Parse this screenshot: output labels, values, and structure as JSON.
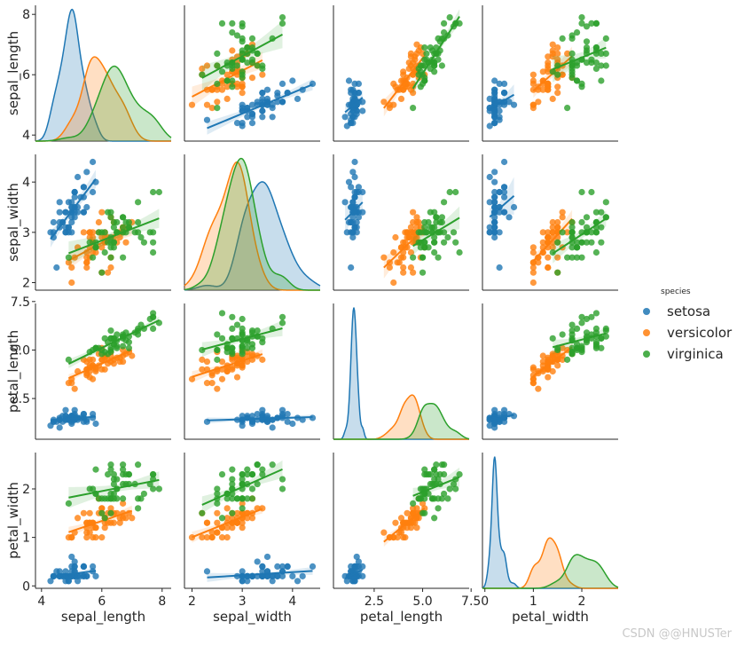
{
  "chart_data": {
    "type": "scatter",
    "title": "",
    "variables": [
      "sepal_length",
      "sepal_width",
      "petal_length",
      "petal_width"
    ],
    "ranges": {
      "sepal_length": [
        3.8,
        8.3
      ],
      "sepal_width": [
        1.85,
        4.55
      ],
      "petal_length": [
        0.4,
        7.4
      ],
      "petal_width": [
        -0.05,
        2.75
      ]
    },
    "ticks": {
      "sepal_length": [
        4,
        6,
        8
      ],
      "sepal_width": [
        2,
        3,
        4
      ],
      "petal_length": [
        2.5,
        5.0,
        7.5
      ],
      "petal_width": [
        0,
        1,
        2
      ]
    },
    "tick_labels": {
      "sepal_length": [
        "4",
        "6",
        "8"
      ],
      "sepal_width": [
        "2",
        "3",
        "4"
      ],
      "petal_length": [
        "2.5",
        "5.0",
        "7.5"
      ],
      "petal_width": [
        "0",
        "1",
        "2"
      ]
    },
    "legend_title": "species",
    "series": [
      {
        "name": "setosa",
        "color": "#1f77b4",
        "sepal_length": [
          5.1,
          4.9,
          4.7,
          4.6,
          5.0,
          5.4,
          4.6,
          5.0,
          4.4,
          4.9,
          5.4,
          4.8,
          4.8,
          4.3,
          5.8,
          5.7,
          5.4,
          5.1,
          5.7,
          5.1,
          5.4,
          5.1,
          4.6,
          5.1,
          4.8,
          5.0,
          5.0,
          5.2,
          5.2,
          4.7,
          4.8,
          5.4,
          5.2,
          5.5,
          4.9,
          5.0,
          5.5,
          4.9,
          4.4,
          5.1,
          5.0,
          4.5,
          4.4,
          5.0,
          5.1,
          4.8,
          5.1,
          4.6,
          5.3,
          5.0
        ],
        "sepal_width": [
          3.5,
          3.0,
          3.2,
          3.1,
          3.6,
          3.9,
          3.4,
          3.4,
          2.9,
          3.1,
          3.7,
          3.4,
          3.0,
          3.0,
          4.0,
          4.4,
          3.9,
          3.5,
          3.8,
          3.8,
          3.4,
          3.7,
          3.6,
          3.3,
          3.4,
          3.0,
          3.4,
          3.5,
          3.4,
          3.2,
          3.1,
          3.4,
          4.1,
          4.2,
          3.1,
          3.2,
          3.5,
          3.6,
          3.0,
          3.4,
          3.5,
          2.3,
          3.2,
          3.5,
          3.8,
          3.0,
          3.8,
          3.2,
          3.7,
          3.3
        ],
        "petal_length": [
          1.4,
          1.4,
          1.3,
          1.5,
          1.4,
          1.7,
          1.4,
          1.5,
          1.4,
          1.5,
          1.5,
          1.6,
          1.4,
          1.1,
          1.2,
          1.5,
          1.3,
          1.4,
          1.7,
          1.5,
          1.7,
          1.5,
          1.0,
          1.7,
          1.9,
          1.6,
          1.6,
          1.5,
          1.4,
          1.6,
          1.6,
          1.5,
          1.5,
          1.4,
          1.5,
          1.2,
          1.3,
          1.4,
          1.3,
          1.5,
          1.3,
          1.3,
          1.3,
          1.6,
          1.9,
          1.4,
          1.6,
          1.4,
          1.5,
          1.4
        ],
        "petal_width": [
          0.2,
          0.2,
          0.2,
          0.2,
          0.2,
          0.4,
          0.3,
          0.2,
          0.2,
          0.1,
          0.2,
          0.2,
          0.1,
          0.1,
          0.2,
          0.4,
          0.4,
          0.3,
          0.3,
          0.3,
          0.2,
          0.4,
          0.2,
          0.5,
          0.2,
          0.2,
          0.4,
          0.2,
          0.2,
          0.2,
          0.2,
          0.4,
          0.1,
          0.2,
          0.2,
          0.2,
          0.2,
          0.1,
          0.2,
          0.2,
          0.3,
          0.3,
          0.2,
          0.6,
          0.4,
          0.3,
          0.2,
          0.2,
          0.2,
          0.2
        ]
      },
      {
        "name": "versicolor",
        "color": "#ff7f0e",
        "sepal_length": [
          7.0,
          6.4,
          6.9,
          5.5,
          6.5,
          5.7,
          6.3,
          4.9,
          6.6,
          5.2,
          5.0,
          5.9,
          6.0,
          6.1,
          5.6,
          6.7,
          5.6,
          5.8,
          6.2,
          5.6,
          5.9,
          6.1,
          6.3,
          6.1,
          6.4,
          6.6,
          6.8,
          6.7,
          6.0,
          5.7,
          5.5,
          5.5,
          5.8,
          6.0,
          5.4,
          6.0,
          6.7,
          6.3,
          5.6,
          5.5,
          5.5,
          6.1,
          5.8,
          5.0,
          5.6,
          5.7,
          5.7,
          6.2,
          5.1,
          5.7
        ],
        "sepal_width": [
          3.2,
          3.2,
          3.1,
          2.3,
          2.8,
          2.8,
          3.3,
          2.4,
          2.9,
          2.7,
          2.0,
          3.0,
          2.2,
          2.9,
          2.9,
          3.1,
          3.0,
          2.7,
          2.2,
          2.5,
          3.2,
          2.8,
          2.5,
          2.8,
          2.9,
          3.0,
          2.8,
          3.0,
          2.9,
          2.6,
          2.4,
          2.4,
          2.7,
          2.7,
          3.0,
          3.4,
          3.1,
          2.3,
          3.0,
          2.5,
          2.6,
          3.0,
          2.6,
          2.3,
          2.7,
          3.0,
          2.9,
          2.9,
          2.5,
          2.8
        ],
        "petal_length": [
          4.7,
          4.5,
          4.9,
          4.0,
          4.6,
          4.5,
          4.7,
          3.3,
          4.6,
          3.9,
          3.5,
          4.2,
          4.0,
          4.7,
          3.6,
          4.4,
          4.5,
          4.1,
          4.5,
          3.9,
          4.8,
          4.0,
          4.9,
          4.7,
          4.3,
          4.4,
          4.8,
          5.0,
          4.5,
          3.5,
          3.8,
          3.7,
          3.9,
          5.1,
          4.5,
          4.5,
          4.7,
          4.4,
          4.1,
          4.0,
          4.4,
          4.6,
          4.0,
          3.3,
          4.2,
          4.2,
          4.2,
          4.3,
          3.0,
          4.1
        ],
        "petal_width": [
          1.4,
          1.5,
          1.5,
          1.3,
          1.5,
          1.3,
          1.6,
          1.0,
          1.3,
          1.4,
          1.0,
          1.5,
          1.0,
          1.4,
          1.3,
          1.4,
          1.5,
          1.0,
          1.5,
          1.1,
          1.8,
          1.3,
          1.5,
          1.2,
          1.3,
          1.4,
          1.4,
          1.7,
          1.5,
          1.0,
          1.1,
          1.0,
          1.2,
          1.6,
          1.5,
          1.6,
          1.5,
          1.3,
          1.3,
          1.3,
          1.2,
          1.4,
          1.2,
          1.0,
          1.3,
          1.2,
          1.3,
          1.3,
          1.1,
          1.3
        ]
      },
      {
        "name": "virginica",
        "color": "#2ca02c",
        "sepal_length": [
          6.3,
          5.8,
          7.1,
          6.3,
          6.5,
          7.6,
          4.9,
          7.3,
          6.7,
          7.2,
          6.5,
          6.4,
          6.8,
          5.7,
          5.8,
          6.4,
          6.5,
          7.7,
          7.7,
          6.0,
          6.9,
          5.6,
          7.7,
          6.3,
          6.7,
          7.2,
          6.2,
          6.1,
          6.4,
          7.2,
          7.4,
          7.9,
          6.4,
          6.3,
          6.1,
          7.7,
          6.3,
          6.4,
          6.0,
          6.9,
          6.7,
          6.9,
          5.8,
          6.8,
          6.7,
          6.7,
          6.3,
          6.5,
          6.2,
          5.9
        ],
        "sepal_width": [
          3.3,
          2.7,
          3.0,
          2.9,
          3.0,
          3.0,
          2.5,
          2.9,
          2.5,
          3.6,
          3.2,
          2.7,
          3.0,
          2.5,
          2.8,
          3.2,
          3.0,
          3.8,
          2.6,
          2.2,
          3.2,
          2.8,
          2.8,
          2.7,
          3.3,
          3.2,
          2.8,
          3.0,
          2.8,
          3.0,
          2.8,
          3.8,
          2.8,
          2.8,
          2.6,
          3.0,
          3.4,
          3.1,
          3.0,
          3.1,
          3.1,
          3.1,
          2.7,
          3.2,
          3.3,
          3.0,
          2.5,
          3.0,
          3.4,
          3.0
        ],
        "petal_length": [
          6.0,
          5.1,
          5.9,
          5.6,
          5.8,
          6.6,
          4.5,
          6.3,
          5.8,
          6.1,
          5.1,
          5.3,
          5.5,
          5.0,
          5.1,
          5.3,
          5.5,
          6.7,
          6.9,
          5.0,
          5.7,
          4.9,
          6.7,
          4.9,
          5.7,
          6.0,
          4.8,
          4.9,
          5.6,
          5.8,
          6.1,
          6.4,
          5.6,
          5.1,
          5.6,
          6.1,
          5.6,
          5.5,
          4.8,
          5.4,
          5.6,
          5.1,
          5.1,
          5.9,
          5.7,
          5.2,
          5.0,
          5.2,
          5.4,
          5.1
        ],
        "petal_width": [
          2.5,
          1.9,
          2.1,
          1.8,
          2.2,
          2.1,
          1.7,
          1.8,
          1.8,
          2.5,
          2.0,
          1.9,
          2.1,
          2.0,
          2.4,
          2.3,
          1.8,
          2.2,
          2.3,
          1.5,
          2.3,
          2.0,
          2.0,
          1.8,
          2.1,
          1.8,
          1.8,
          1.8,
          2.1,
          1.6,
          1.9,
          2.0,
          2.2,
          1.5,
          1.4,
          2.3,
          2.4,
          1.8,
          1.8,
          2.1,
          2.4,
          2.3,
          1.9,
          2.3,
          2.5,
          2.3,
          1.9,
          2.0,
          2.3,
          1.8
        ]
      }
    ]
  },
  "watermark": "CSDN @@HNUSTer"
}
